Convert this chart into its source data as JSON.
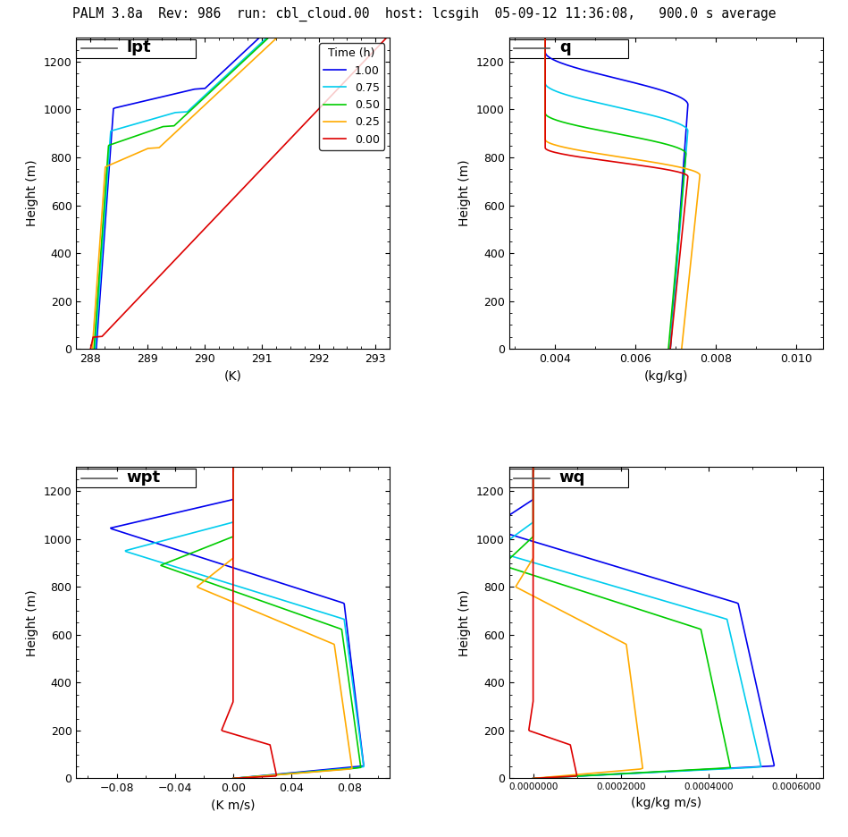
{
  "title": "PALM 3.8a  Rev: 986  run: cbl_cloud.00  host: lcsgih  05-09-12 11:36:08,   900.0 s average",
  "title_fontsize": 10.5,
  "colors": [
    "#0000ee",
    "#00ccee",
    "#00cc00",
    "#ffaa00",
    "#dd0000"
  ],
  "time_labels": [
    "1.00",
    "0.75",
    "0.50",
    "0.25",
    "0.00"
  ],
  "ylabel": "Height (m)",
  "ylim": [
    0,
    1300
  ],
  "yticks": [
    0,
    200,
    400,
    600,
    800,
    1000,
    1200
  ],
  "subplot_labels": [
    "lpt",
    "q",
    "wpt",
    "wq"
  ],
  "xlabels": [
    "(K)",
    "(kg/kg)",
    "(K m/s)",
    "(kg/kg m/s)"
  ],
  "xlims_lpt": [
    287.75,
    293.25
  ],
  "xticks_lpt": [
    288.0,
    289.0,
    290.0,
    291.0,
    292.0,
    293.0
  ],
  "xlims_q": [
    0.00285,
    0.01065
  ],
  "xticks_q": [
    0.004,
    0.006,
    0.008,
    0.01
  ],
  "xlims_wpt": [
    -0.108,
    0.108
  ],
  "xticks_wpt": [
    -0.08,
    -0.04,
    0.0,
    0.04,
    0.08
  ],
  "xlims_wq": [
    -5.5e-05,
    0.00066
  ],
  "xticks_wq": [
    0.0,
    0.0002,
    0.0004,
    0.0006
  ],
  "bg_color": "#ffffff",
  "line_width": 1.2
}
